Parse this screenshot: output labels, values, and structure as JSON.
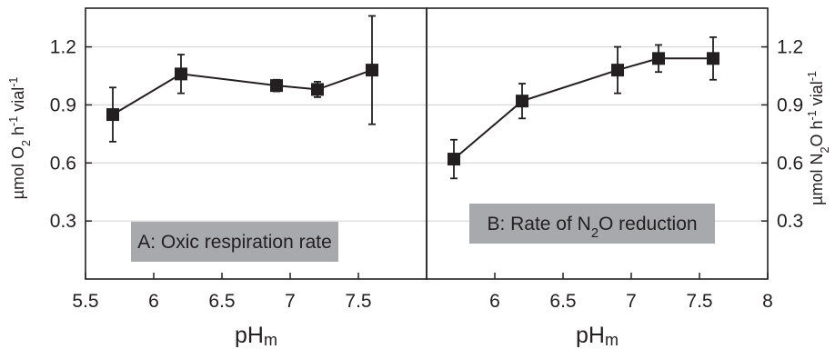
{
  "chart_data": [
    {
      "panel": "A",
      "type": "line",
      "annotation": "A: Oxic respiration rate",
      "xlabel_main": "pH",
      "xlabel_sub": "m",
      "ylabel_parts": [
        "µmol O",
        "2",
        " h",
        "-1",
        " vial",
        "-1"
      ],
      "xlim": [
        5.5,
        8
      ],
      "ylim": [
        0,
        1.4
      ],
      "xticks": [
        5.5,
        6,
        6.5,
        7,
        7.5
      ],
      "xtick_labels": [
        "5.5",
        "6",
        "6.5",
        "7",
        "7.5"
      ],
      "yticks": [
        0.3,
        0.6,
        0.9,
        1.2
      ],
      "ytick_labels": [
        "0.3",
        "0.6",
        "0.9",
        "1.2"
      ],
      "grid": true,
      "series": [
        {
          "x": [
            5.7,
            6.2,
            6.9,
            7.2,
            7.6
          ],
          "y": [
            0.85,
            1.06,
            1.0,
            0.98,
            1.08
          ],
          "err": [
            0.14,
            0.1,
            0.03,
            0.04,
            0.28
          ]
        }
      ]
    },
    {
      "panel": "B",
      "type": "line",
      "annotation_parts": [
        "B: Rate of N",
        "2",
        "O reduction"
      ],
      "xlabel_main": "pH",
      "xlabel_sub": "m",
      "ylabel_parts": [
        "µmol N",
        "2",
        "O h",
        "-1",
        " vial",
        "-1"
      ],
      "xlim": [
        5.5,
        8
      ],
      "ylim": [
        0,
        1.4
      ],
      "xticks": [
        6,
        6.5,
        7,
        7.5,
        8
      ],
      "xtick_labels": [
        "6",
        "6.5",
        "7",
        "7.5",
        "8"
      ],
      "yticks": [
        0.3,
        0.6,
        0.9,
        1.2
      ],
      "ytick_labels": [
        "0.3",
        "0.6",
        "0.9",
        "1.2"
      ],
      "grid": true,
      "series": [
        {
          "x": [
            5.7,
            6.2,
            6.9,
            7.2,
            7.6
          ],
          "y": [
            0.62,
            0.92,
            1.08,
            1.14,
            1.14
          ],
          "err": [
            0.1,
            0.09,
            0.12,
            0.07,
            0.11
          ]
        }
      ]
    }
  ],
  "style": {
    "ink": "#231f20",
    "grid": "#cfcfcf",
    "label_box": "#a7a9ac",
    "marker": "#231f20"
  }
}
